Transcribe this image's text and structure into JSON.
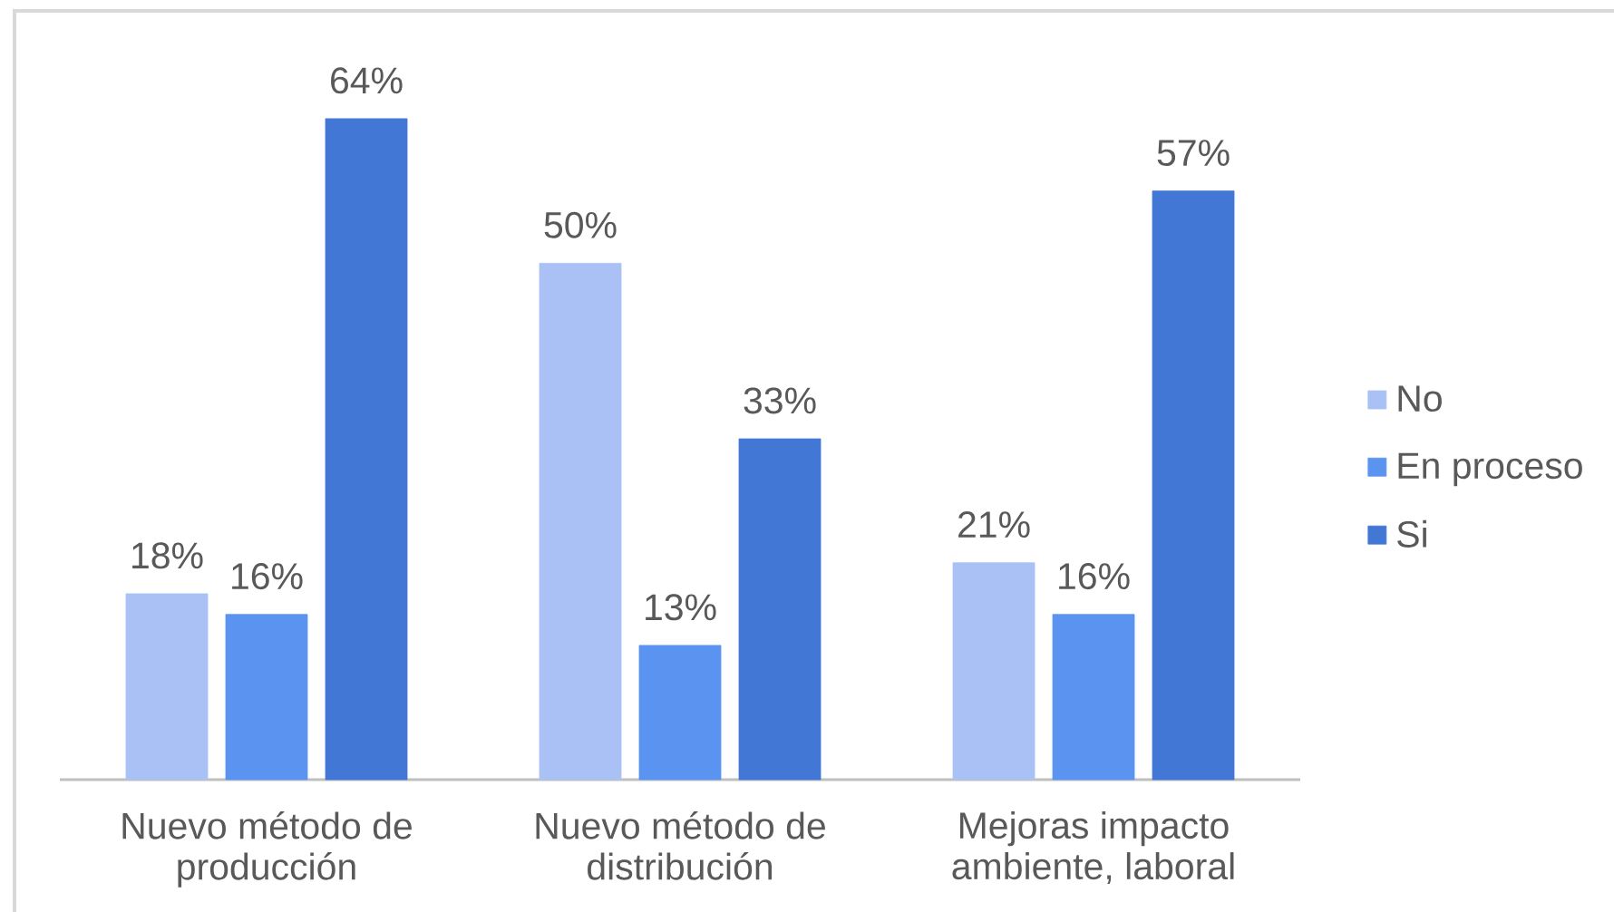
{
  "chart_data": {
    "type": "bar",
    "categories": [
      "Nuevo método de producción",
      "Nuevo método de distribución",
      "Mejoras impacto ambiente, laboral"
    ],
    "series": [
      {
        "name": "No",
        "color": "#a9c1f5",
        "values": [
          18,
          50,
          21
        ],
        "value_labels": [
          "18%",
          "50%",
          "21%"
        ]
      },
      {
        "name": "En proceso",
        "color": "#5a94f0",
        "values": [
          16,
          13,
          16
        ],
        "value_labels": [
          "16%",
          "13%",
          "16%"
        ]
      },
      {
        "name": "Si",
        "color": "#4377d6",
        "values": [
          64,
          33,
          57
        ],
        "value_labels": [
          "64%",
          "33%",
          "57%"
        ]
      }
    ],
    "legend": "right"
  }
}
